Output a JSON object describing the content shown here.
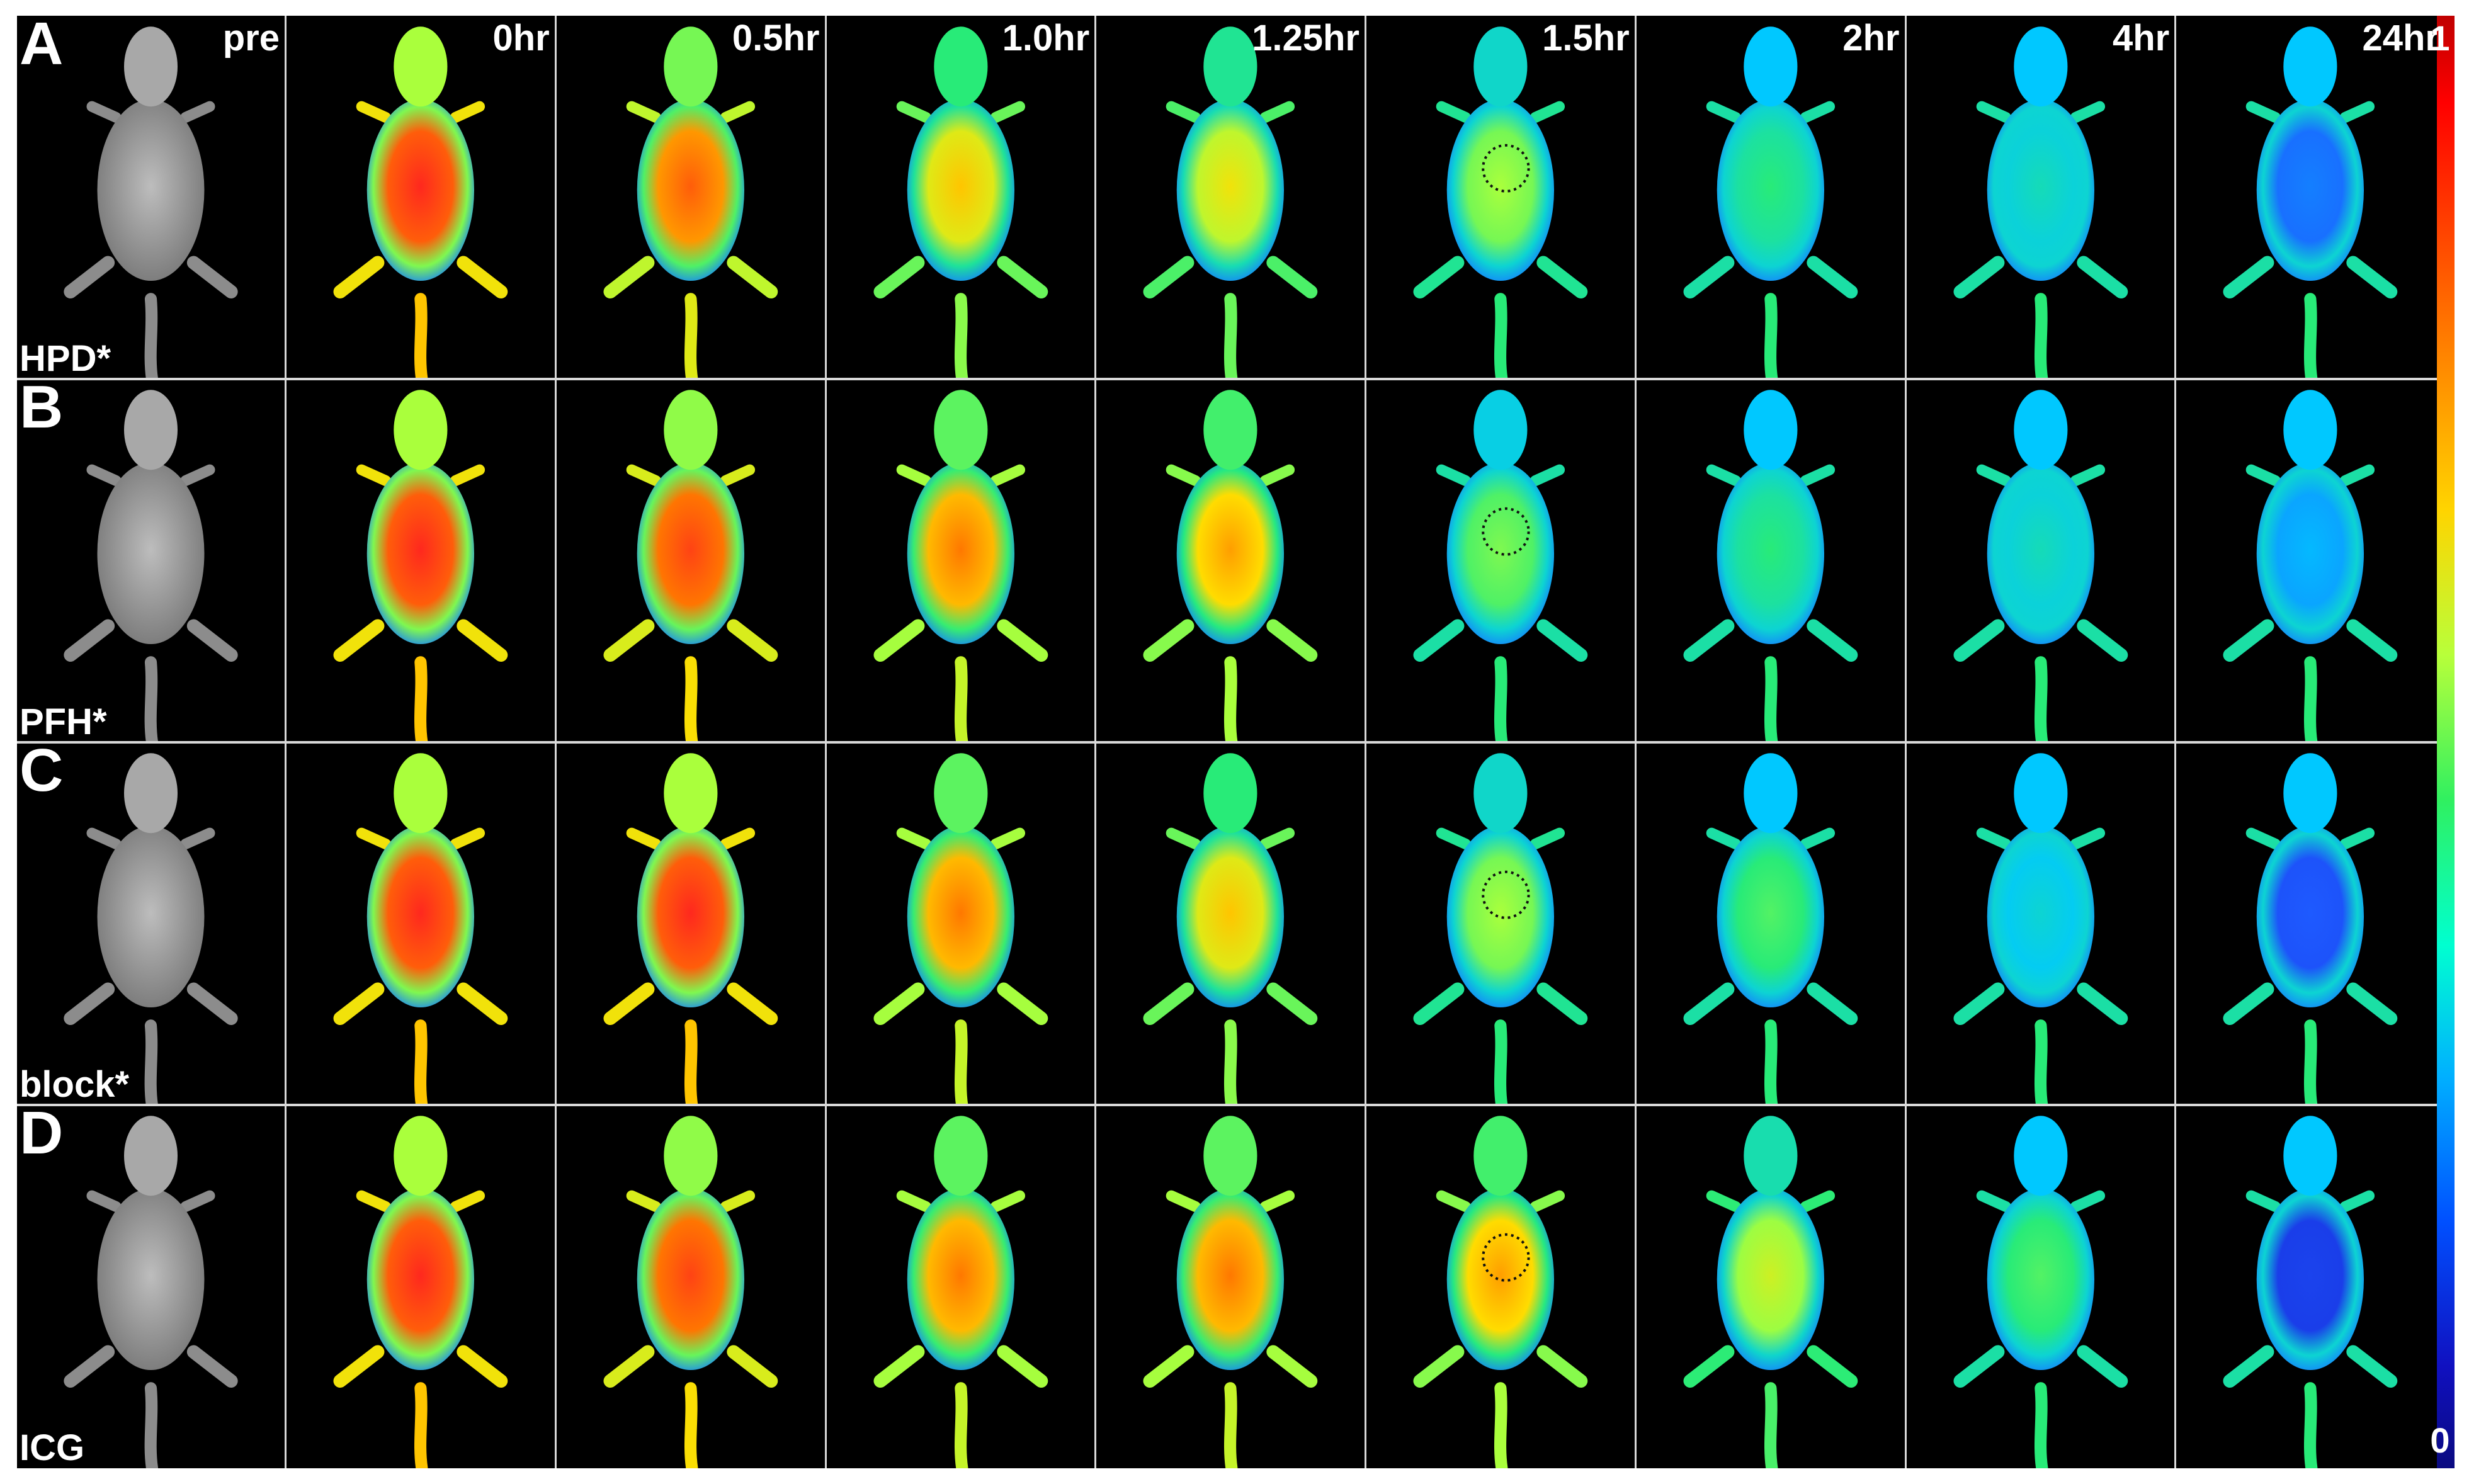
{
  "time_points": [
    "pre",
    "0hr",
    "0.5hr",
    "1.0hr",
    "1.25hr",
    "1.5hr",
    "2hr",
    "4hr",
    "24hr"
  ],
  "rows": [
    {
      "letter": "A",
      "group": "HPD*",
      "intensities": [
        0,
        1.0,
        0.9,
        0.75,
        0.7,
        0.6,
        0.45,
        0.38,
        0.2
      ],
      "circle_column": 5
    },
    {
      "letter": "B",
      "group": "PFH*",
      "intensities": [
        0,
        1.0,
        0.95,
        0.85,
        0.8,
        0.55,
        0.45,
        0.38,
        0.28
      ],
      "circle_column": 5
    },
    {
      "letter": "C",
      "group": "block*",
      "intensities": [
        0,
        1.0,
        1.0,
        0.85,
        0.75,
        0.6,
        0.5,
        0.35,
        0.15
      ],
      "circle_column": 5
    },
    {
      "letter": "D",
      "group": "ICG",
      "intensities": [
        0,
        1.0,
        0.95,
        0.85,
        0.85,
        0.8,
        0.65,
        0.5,
        0.1
      ],
      "circle_column": 5
    }
  ],
  "colorbar": {
    "max_label": "1",
    "min_label": "0"
  }
}
